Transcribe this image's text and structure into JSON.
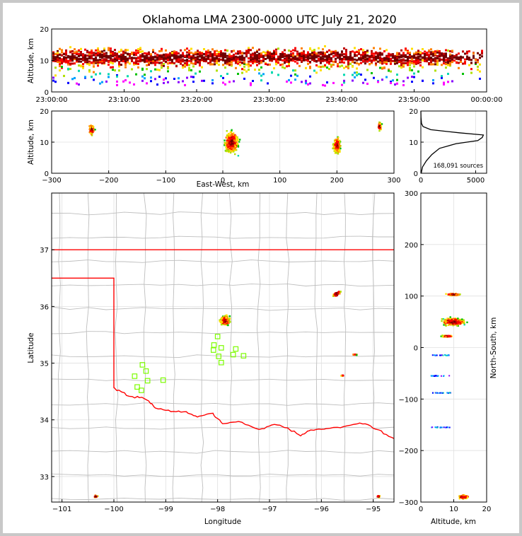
{
  "chart_data": {
    "type": "scatter",
    "title": "Oklahoma LMA 2300-0000 UTC July 21, 2020",
    "source_count_label": "168,091 sources",
    "palette": [
      "#ff00ff",
      "#8800ff",
      "#0000ff",
      "#00a0ff",
      "#00d8b0",
      "#00c000",
      "#b0e000",
      "#ffe000",
      "#ff8000",
      "#ff0000",
      "#c00000",
      "#700000"
    ],
    "state_border_color": "#ff0000",
    "county_line_color": "#bebebe",
    "station_marker_color": "#7cfc00",
    "panels": {
      "time_altitude": {
        "ylabel": "Altitude, km",
        "xlim": [
          "23:00:00",
          "00:00:00"
        ],
        "ylim": [
          0,
          20
        ],
        "x_tick_labels": [
          "23:00:00",
          "23:10:00",
          "23:20:00",
          "23:30:00",
          "23:40:00",
          "23:50:00",
          "00:00:00"
        ],
        "y_tick_labels": [
          "0",
          "10",
          "20"
        ]
      },
      "ew_altitude": {
        "xlabel": "East-West, km",
        "ylabel": "Altitude, km",
        "xlim": [
          -300,
          300
        ],
        "ylim": [
          0,
          20
        ],
        "x_tick_labels": [
          "−300",
          "−200",
          "−100",
          "0",
          "100",
          "200",
          "300"
        ],
        "y_tick_labels": [
          "0",
          "10",
          "20"
        ],
        "clusters": [
          {
            "x": -230,
            "alt": 14
          },
          {
            "x": 15,
            "alt": 10
          },
          {
            "x": 200,
            "alt": 9
          },
          {
            "x": 275,
            "alt": 15
          }
        ]
      },
      "altitude_histogram": {
        "xlim": [
          0,
          6000
        ],
        "ylim": [
          0,
          20
        ],
        "x_tick_labels": [
          "0",
          "5000"
        ],
        "y_tick_labels": [
          "0",
          "10",
          "20"
        ],
        "profile": [
          {
            "alt": 0,
            "count": 30
          },
          {
            "alt": 2,
            "count": 150
          },
          {
            "alt": 4,
            "count": 500
          },
          {
            "alt": 6,
            "count": 1000
          },
          {
            "alt": 8,
            "count": 1700
          },
          {
            "alt": 9.5,
            "count": 3200
          },
          {
            "alt": 10.5,
            "count": 5200
          },
          {
            "alt": 11.5,
            "count": 5600
          },
          {
            "alt": 12.3,
            "count": 5700
          },
          {
            "alt": 13,
            "count": 3500
          },
          {
            "alt": 14,
            "count": 900
          },
          {
            "alt": 15,
            "count": 200
          },
          {
            "alt": 16,
            "count": 60
          },
          {
            "alt": 18,
            "count": 10
          },
          {
            "alt": 20,
            "count": 0
          }
        ]
      },
      "plan_view": {
        "xlabel": "Longitude",
        "ylabel": "Latitude",
        "xlim": [
          -101.2,
          -94.6
        ],
        "ylim": [
          32.55,
          38.0
        ],
        "x_tick_labels": [
          "−101",
          "−100",
          "−99",
          "−98",
          "−97",
          "−96",
          "−95"
        ],
        "y_tick_labels": [
          "33",
          "34",
          "35",
          "36",
          "37"
        ],
        "clusters": [
          {
            "lon": -97.85,
            "lat": 35.75
          },
          {
            "lon": -95.7,
            "lat": 36.22
          },
          {
            "lon": -95.35,
            "lat": 35.15
          },
          {
            "lon": -95.6,
            "lat": 34.78
          },
          {
            "lon": -100.35,
            "lat": 32.65
          },
          {
            "lon": -94.9,
            "lat": 32.65
          }
        ],
        "stations": [
          {
            "lon": -99.45,
            "lat": 34.97
          },
          {
            "lon": -99.6,
            "lat": 34.77
          },
          {
            "lon": -99.38,
            "lat": 34.86
          },
          {
            "lon": -99.35,
            "lat": 34.69
          },
          {
            "lon": -99.55,
            "lat": 34.58
          },
          {
            "lon": -99.47,
            "lat": 34.52
          },
          {
            "lon": -99.05,
            "lat": 34.7
          },
          {
            "lon": -98.0,
            "lat": 35.47
          },
          {
            "lon": -98.07,
            "lat": 35.32
          },
          {
            "lon": -98.08,
            "lat": 35.23
          },
          {
            "lon": -97.93,
            "lat": 35.27
          },
          {
            "lon": -97.98,
            "lat": 35.12
          },
          {
            "lon": -97.93,
            "lat": 35.01
          },
          {
            "lon": -97.7,
            "lat": 35.15
          },
          {
            "lon": -97.65,
            "lat": 35.25
          },
          {
            "lon": -97.5,
            "lat": 35.13
          }
        ]
      },
      "ns_altitude": {
        "xlabel": "Altitude, km",
        "ylabel": "North-South, km",
        "xlim": [
          0,
          20
        ],
        "ylim": [
          -300,
          300
        ],
        "x_tick_labels": [
          "0",
          "10",
          "20"
        ],
        "y_tick_labels": [
          "−300",
          "−200",
          "−100",
          "0",
          "100",
          "200",
          "300"
        ],
        "clusters": [
          {
            "alt": 10,
            "ns": 103
          },
          {
            "alt": 10,
            "ns": 50
          },
          {
            "alt": 8,
            "ns": 22
          },
          {
            "alt": 13,
            "ns": -290
          }
        ]
      }
    }
  }
}
